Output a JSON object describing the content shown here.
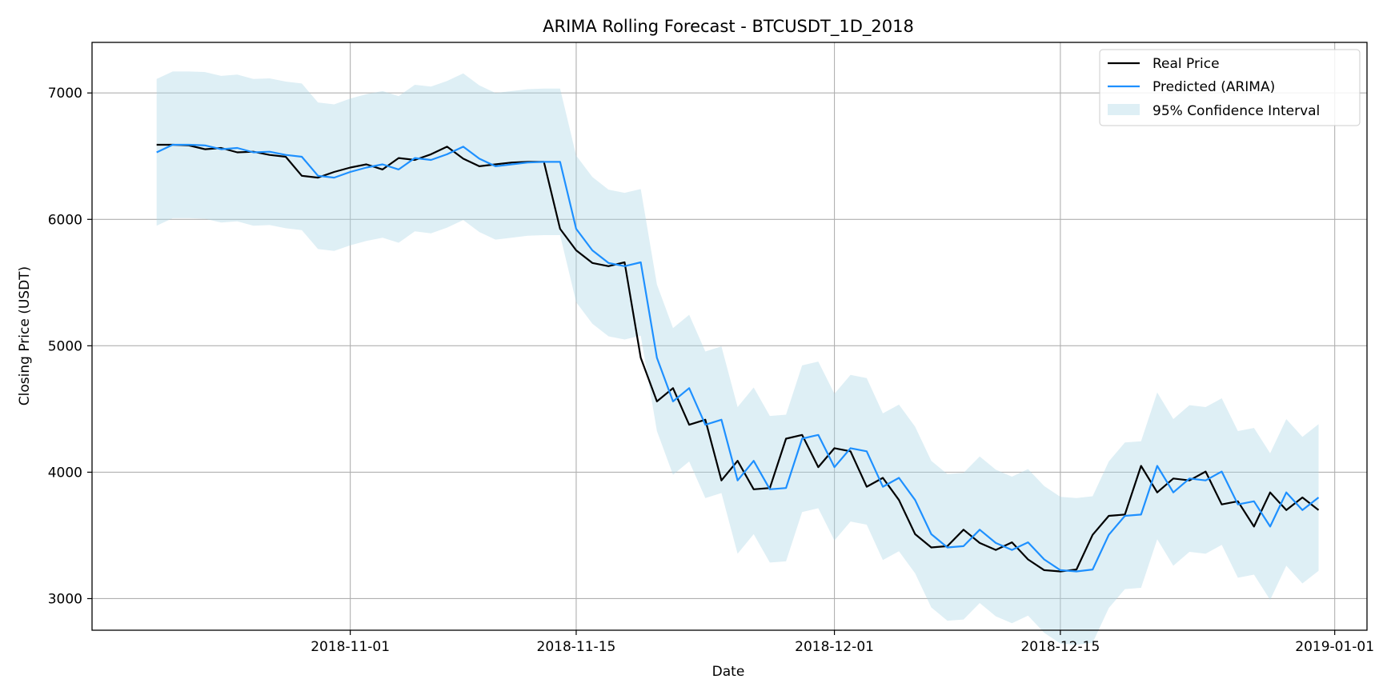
{
  "chart_data": {
    "type": "line",
    "title": "ARIMA Rolling Forecast - BTCUSDT_1D_2018",
    "xlabel": "Date",
    "ylabel": "Closing Price (USDT)",
    "xlim": [
      "2018-10-16",
      "2019-01-03"
    ],
    "ylim": [
      2750,
      7400
    ],
    "x_ticks": [
      "2018-11-01",
      "2018-11-15",
      "2018-12-01",
      "2018-12-15",
      "2019-01-01"
    ],
    "y_ticks": [
      3000,
      4000,
      5000,
      6000,
      7000
    ],
    "grid": true,
    "legend_position": "top-right",
    "start_date": "2018-10-20",
    "series": [
      {
        "name": "Real Price",
        "color": "#000000",
        "values": [
          6590,
          6590,
          6585,
          6555,
          6565,
          6530,
          6535,
          6510,
          6495,
          6345,
          6330,
          6375,
          6410,
          6435,
          6395,
          6485,
          6470,
          6515,
          6575,
          6480,
          6420,
          6435,
          6450,
          6455,
          6455,
          5925,
          5755,
          5655,
          5630,
          5660,
          4905,
          4560,
          4665,
          4375,
          4415,
          3935,
          4090,
          3865,
          3875,
          4265,
          4295,
          4040,
          4190,
          4165,
          3885,
          3955,
          3780,
          3510,
          3405,
          3415,
          3545,
          3440,
          3385,
          3445,
          3310,
          3225,
          3215,
          3230,
          3505,
          3655,
          3665,
          4050,
          3840,
          3950,
          3935,
          4005,
          3745,
          3770,
          3570,
          3840,
          3700,
          3800,
          3700
        ]
      },
      {
        "name": "Predicted (ARIMA)",
        "color": "#1e90ff",
        "values": [
          6530,
          6590,
          6590,
          6585,
          6555,
          6565,
          6530,
          6535,
          6510,
          6495,
          6345,
          6330,
          6375,
          6410,
          6435,
          6395,
          6485,
          6470,
          6515,
          6575,
          6480,
          6420,
          6435,
          6450,
          6455,
          6455,
          5925,
          5755,
          5655,
          5630,
          5660,
          4905,
          4560,
          4665,
          4375,
          4415,
          3935,
          4090,
          3865,
          3875,
          4265,
          4295,
          4040,
          4190,
          4165,
          3885,
          3955,
          3780,
          3510,
          3405,
          3415,
          3545,
          3440,
          3385,
          3445,
          3310,
          3225,
          3215,
          3230,
          3505,
          3655,
          3665,
          4050,
          3840,
          3950,
          3935,
          4005,
          3745,
          3770,
          3570,
          3840,
          3700,
          3800
        ]
      },
      {
        "name": "95% Confidence Interval",
        "type": "band",
        "color": "#add8e6",
        "halfwidth": 580
      }
    ]
  }
}
